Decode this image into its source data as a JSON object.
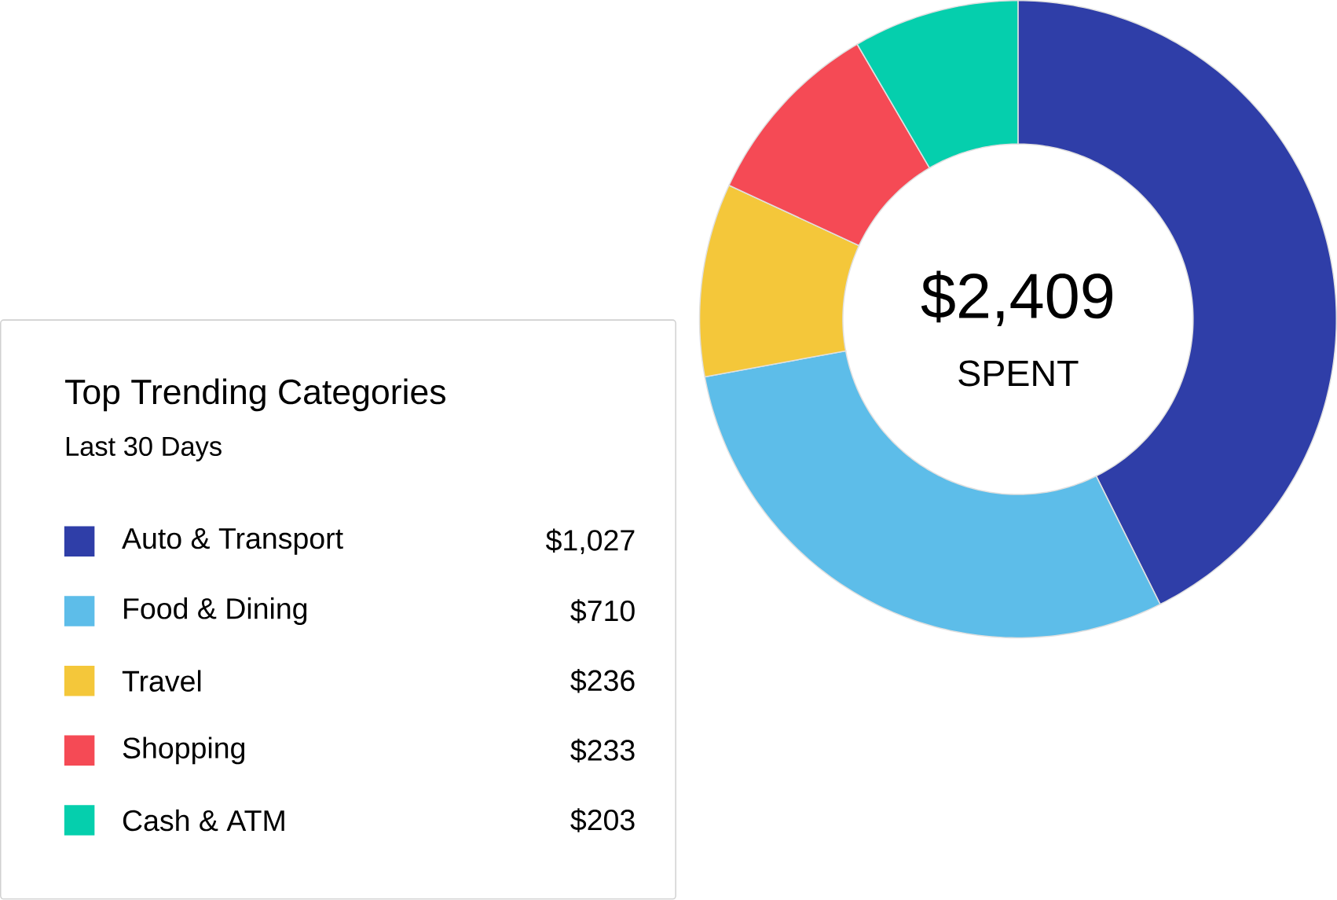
{
  "chart_data": {
    "type": "donut",
    "title": "Top Trending Categories",
    "subtitle": "Last 30 Days",
    "categories": [
      "Auto & Transport",
      "Food & Dining",
      "Travel",
      "Shopping",
      "Cash & ATM"
    ],
    "values": [
      1027,
      710,
      236,
      233,
      203
    ],
    "colors": [
      "#2f3ea8",
      "#5dbde9",
      "#f4c73a",
      "#f54a55",
      "#05cfad"
    ],
    "value_labels": [
      "$1,027",
      "$710",
      "$236",
      "$233",
      "$203"
    ],
    "annotations": [
      "$2,409",
      "SPENT"
    ],
    "legend": "bottom left"
  }
}
